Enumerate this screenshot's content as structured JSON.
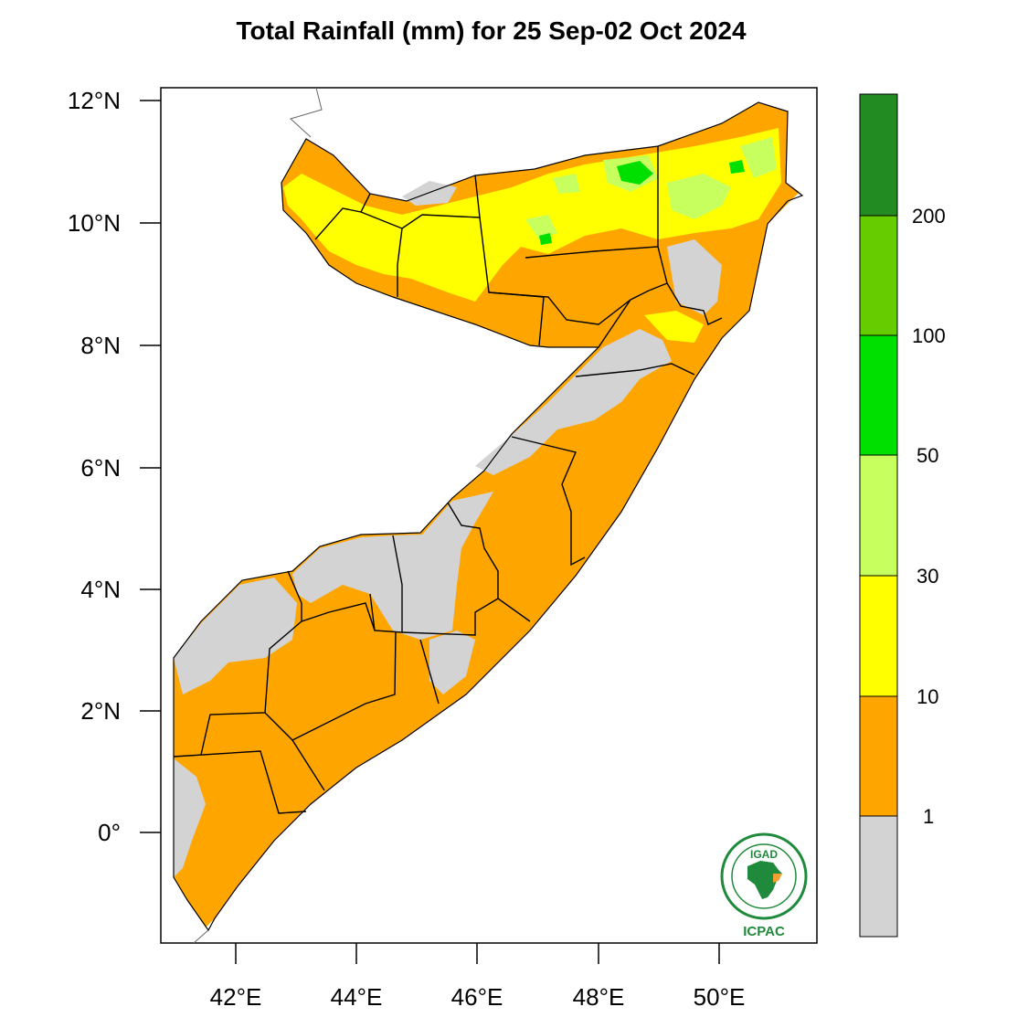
{
  "title": "Total Rainfall (mm) for 25 Sep-02 Oct 2024",
  "axes": {
    "lat_ticks": [
      "12°N",
      "10°N",
      "8°N",
      "6°N",
      "4°N",
      "2°N",
      "0°"
    ],
    "lon_ticks": [
      "42°E",
      "44°E",
      "46°E",
      "48°E",
      "50°E"
    ]
  },
  "colorbar": {
    "levels": [
      "1",
      "10",
      "30",
      "50",
      "100",
      "200"
    ],
    "colors": {
      "below_1": "#d3d3d3",
      "1_10": "#ffa500",
      "10_30": "#ffff00",
      "30_50": "#c6ff5e",
      "50_100": "#00e000",
      "100_200": "#66cc00",
      "above_200": "#228b22"
    }
  },
  "logo": {
    "name": "IGAD",
    "sub": "ICPAC"
  }
}
